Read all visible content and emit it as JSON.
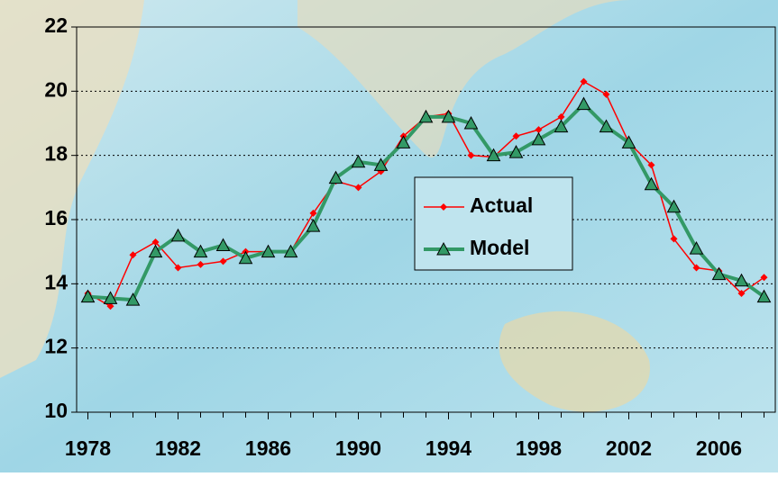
{
  "chart_data": {
    "type": "line",
    "x": [
      1978,
      1979,
      1980,
      1981,
      1982,
      1983,
      1984,
      1985,
      1986,
      1987,
      1988,
      1989,
      1990,
      1991,
      1992,
      1993,
      1994,
      1995,
      1996,
      1997,
      1998,
      1999,
      2000,
      2001,
      2002,
      2003,
      2004,
      2005,
      2006,
      2007,
      2008
    ],
    "series": [
      {
        "name": "Actual",
        "color": "#ff0000",
        "marker": "diamond",
        "values": [
          13.7,
          13.3,
          14.9,
          15.3,
          14.5,
          14.6,
          14.7,
          15.0,
          15.0,
          15.0,
          16.2,
          17.2,
          17.0,
          17.5,
          18.6,
          19.2,
          19.3,
          18.0,
          17.95,
          18.6,
          18.8,
          19.2,
          20.3,
          19.9,
          18.4,
          17.7,
          15.4,
          14.5,
          14.4,
          13.7,
          14.2
        ]
      },
      {
        "name": "Model",
        "color": "#339966",
        "marker": "triangle",
        "values": [
          13.6,
          13.55,
          13.5,
          15.0,
          15.5,
          15.0,
          15.2,
          14.8,
          15.0,
          15.0,
          15.8,
          17.3,
          17.8,
          17.7,
          18.4,
          19.2,
          19.2,
          19.0,
          18.0,
          18.1,
          18.5,
          18.9,
          19.6,
          18.9,
          18.4,
          17.1,
          16.4,
          15.1,
          14.3,
          14.1,
          13.6
        ]
      }
    ],
    "xlim": [
      1977.5,
      2008.5
    ],
    "xticks": [
      1978,
      1982,
      1986,
      1990,
      1994,
      1998,
      2002,
      2006
    ],
    "ylim": [
      10,
      22
    ],
    "yticks": [
      10,
      12,
      14,
      16,
      18,
      20,
      22
    ],
    "grid": true
  }
}
